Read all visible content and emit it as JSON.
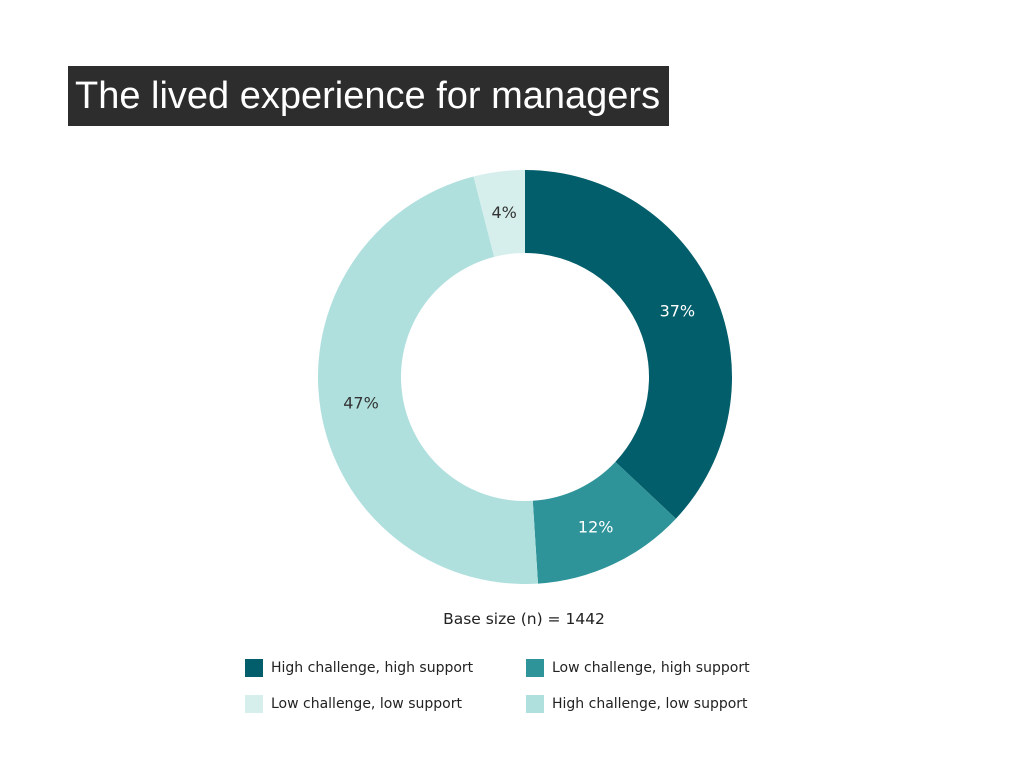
{
  "slide": {
    "title": "The lived experience for managers",
    "base_size": "Base size (n) = 1442"
  },
  "chart_data": {
    "type": "pie",
    "variant": "donut",
    "title": "",
    "slices": [
      {
        "label": "High challenge, high support",
        "value": 37,
        "display": "37%",
        "color": "#035e6b",
        "label_color": "#ffffff"
      },
      {
        "label": "Low challenge, high support",
        "value": 12,
        "display": "12%",
        "color": "#2e9499",
        "label_color": "#ffffff"
      },
      {
        "label": "High challenge, low support",
        "value": 47,
        "display": "47%",
        "color": "#b0e0de",
        "label_color": "#333333"
      },
      {
        "label": "Low challenge, low support",
        "value": 4,
        "display": "4%",
        "color": "#d6efec",
        "label_color": "#333333"
      }
    ],
    "legend": {
      "placement": "bottom",
      "items": [
        {
          "label": "High challenge, high support",
          "color": "#035e6b"
        },
        {
          "label": "Low challenge, high support",
          "color": "#2e9499"
        },
        {
          "label": "Low challenge, low support",
          "color": "#d6efec"
        },
        {
          "label": "High challenge, low support",
          "color": "#b0e0de"
        }
      ]
    }
  }
}
